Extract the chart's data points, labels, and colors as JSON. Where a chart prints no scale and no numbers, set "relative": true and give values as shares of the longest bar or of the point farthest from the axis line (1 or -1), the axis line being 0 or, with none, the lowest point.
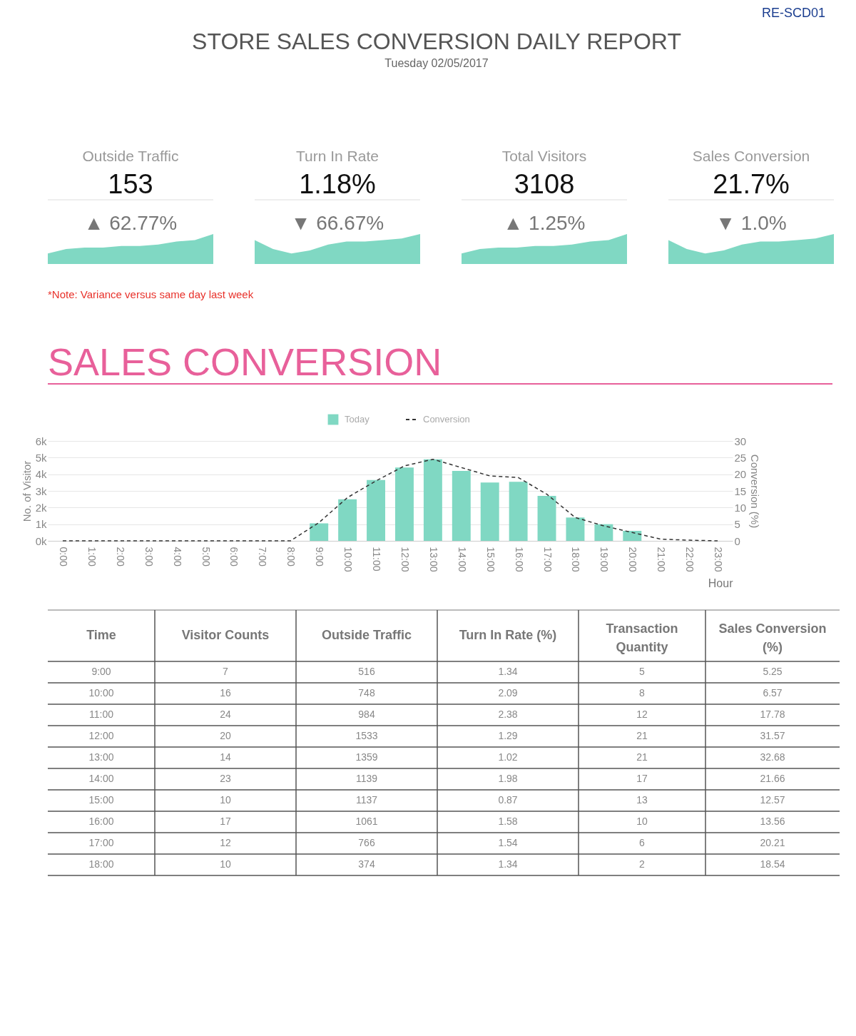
{
  "chart_data": [
    {
      "type": "other",
      "title": "STORE SALES CONVERSION DAILY REPORT",
      "subtitle": "Tuesday 02/05/2017",
      "annotations": [
        "RE-SCD01"
      ]
    },
    {
      "type": "area",
      "title": "Outside Traffic",
      "relative": true,
      "annotations": [
        "153",
        "▲ 62.77%"
      ],
      "categories": [
        null,
        null,
        null,
        null,
        null,
        null,
        null,
        null,
        null,
        null
      ],
      "series": [
        {
          "color": "#80d8c3",
          "values": [
            0.35,
            0.5,
            0.55,
            0.55,
            0.6,
            0.6,
            0.65,
            0.75,
            0.8,
            1.0
          ]
        }
      ]
    },
    {
      "type": "area",
      "title": "Turn In Rate",
      "relative": true,
      "annotations": [
        "1.18%",
        "▼ 66.67%"
      ],
      "categories": [
        null,
        null,
        null,
        null,
        null,
        null,
        null,
        null,
        null,
        null
      ],
      "series": [
        {
          "color": "#80d8c3",
          "values": [
            0.8,
            0.5,
            0.35,
            0.45,
            0.65,
            0.75,
            0.75,
            0.8,
            0.85,
            1.0
          ]
        }
      ]
    },
    {
      "type": "area",
      "title": "Total Visitors",
      "relative": true,
      "annotations": [
        "3108",
        "▲ 1.25%"
      ],
      "categories": [
        null,
        null,
        null,
        null,
        null,
        null,
        null,
        null,
        null,
        null
      ],
      "series": [
        {
          "color": "#80d8c3",
          "values": [
            0.35,
            0.5,
            0.55,
            0.55,
            0.6,
            0.6,
            0.65,
            0.75,
            0.8,
            1.0
          ]
        }
      ]
    },
    {
      "type": "area",
      "title": "Sales Conversion",
      "relative": true,
      "annotations": [
        "21.7%",
        "▼ 1.0%"
      ],
      "categories": [
        null,
        null,
        null,
        null,
        null,
        null,
        null,
        null,
        null,
        null
      ],
      "series": [
        {
          "color": "#80d8c3",
          "values": [
            0.8,
            0.5,
            0.35,
            0.45,
            0.65,
            0.75,
            0.75,
            0.8,
            0.85,
            1.0
          ]
        }
      ]
    },
    {
      "type": "bar",
      "title": "SALES CONVERSION",
      "annotations": [
        "*Note: Variance versus same day last week"
      ],
      "xlabel": "Hour",
      "ylabel": "No. of Visitor",
      "y2label": "Conversion (%)",
      "categories": [
        "0:00",
        "1:00",
        "2:00",
        "3:00",
        "4:00",
        "5:00",
        "6:00",
        "7:00",
        "8:00",
        "9:00",
        "10:00",
        "11:00",
        "12:00",
        "13:00",
        "14:00",
        "15:00",
        "16:00",
        "17:00",
        "18:00",
        "19:00",
        "20:00",
        "21:00",
        "22:00",
        "23:00"
      ],
      "series": [
        {
          "name": "Today",
          "type": "bar",
          "color": "#80d8c3",
          "values": [
            0,
            0,
            0,
            0,
            0,
            0,
            0,
            0,
            0,
            1050,
            2500,
            3650,
            4400,
            4900,
            4200,
            3500,
            3550,
            2700,
            1400,
            1000,
            600,
            0,
            0,
            0
          ]
        },
        {
          "name": "Conversion",
          "type": "line",
          "axis": "y2",
          "line_style": "dashed",
          "color": "#333333",
          "values": [
            0,
            0,
            0,
            0,
            0,
            0,
            0,
            0,
            0,
            5.5,
            13,
            18,
            22.5,
            24.5,
            22,
            19.5,
            19,
            14,
            7,
            4.5,
            2.5,
            0.5,
            0.2,
            0
          ]
        }
      ],
      "ylim": [
        0,
        6000
      ],
      "yticks": [
        {
          "value": 0,
          "label": "0k"
        },
        {
          "value": 1000,
          "label": "1k"
        },
        {
          "value": 2000,
          "label": "2k"
        },
        {
          "value": 3000,
          "label": "3k"
        },
        {
          "value": 4000,
          "label": "4k"
        },
        {
          "value": 5000,
          "label": "5k"
        },
        {
          "value": 6000,
          "label": "6k"
        }
      ],
      "y2lim": [
        0,
        30
      ],
      "y2ticks": [
        0,
        5,
        10,
        15,
        20,
        25,
        30
      ],
      "grid": "y",
      "legend": "top"
    },
    {
      "type": "heatmap",
      "ylabel": "Time",
      "data_labels": true,
      "categories": [
        "Visitor Counts",
        "Outside Traffic",
        "Turn In Rate (%)",
        "Transaction Quantity",
        "Sales Conversion (%)"
      ],
      "y_categories": [
        "9:00",
        "10:00",
        "11:00",
        "12:00",
        "13:00",
        "14:00",
        "15:00",
        "16:00",
        "17:00",
        "18:00"
      ],
      "cells": [
        [
          7,
          516,
          1.34,
          5,
          5.25
        ],
        [
          16,
          748,
          2.09,
          8,
          6.57
        ],
        [
          24,
          984,
          2.38,
          12,
          17.78
        ],
        [
          20,
          1533,
          1.29,
          21,
          31.57
        ],
        [
          14,
          1359,
          1.02,
          21,
          32.68
        ],
        [
          23,
          1139,
          1.98,
          17,
          21.66
        ],
        [
          10,
          1137,
          0.87,
          13,
          12.57
        ],
        [
          17,
          1061,
          1.58,
          10,
          13.56
        ],
        [
          12,
          766,
          1.54,
          6,
          20.21
        ],
        [
          10,
          374,
          1.34,
          2,
          18.54
        ]
      ]
    }
  ]
}
